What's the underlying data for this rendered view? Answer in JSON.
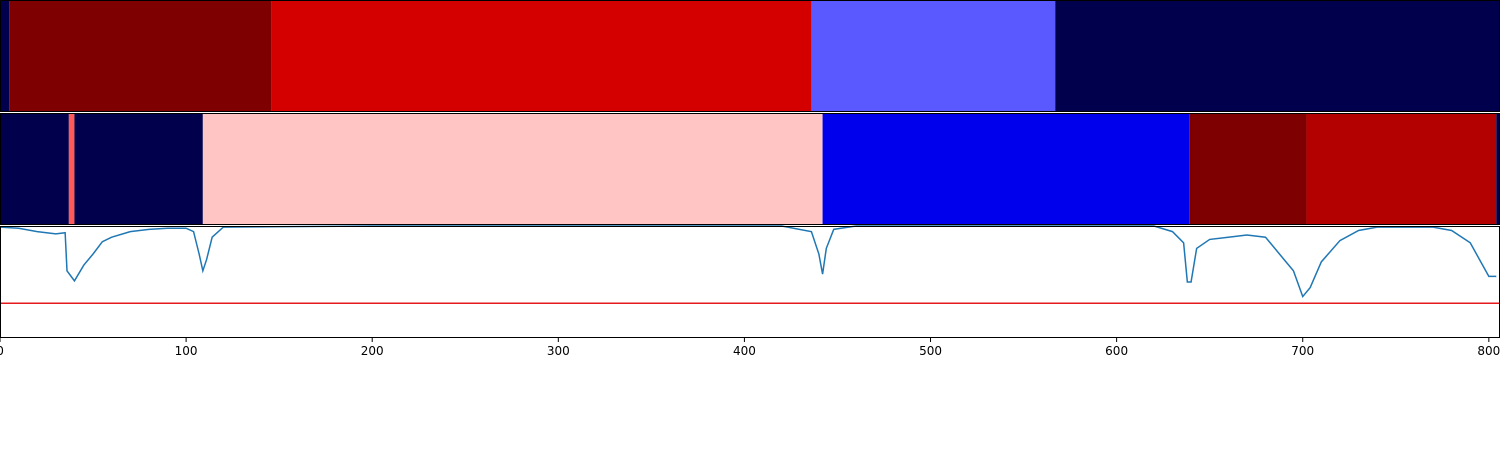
{
  "chart_data": [
    {
      "type": "segments",
      "segments": [
        {
          "start": 0,
          "end": 5,
          "color": "#00004c"
        },
        {
          "start": 5,
          "end": 146,
          "color": "#7f0000"
        },
        {
          "start": 146,
          "end": 436,
          "color": "#d40000"
        },
        {
          "start": 436,
          "end": 567,
          "color": "#5959ff"
        },
        {
          "start": 567,
          "end": 806,
          "color": "#00004c"
        }
      ]
    },
    {
      "type": "segments",
      "segments": [
        {
          "start": 0,
          "end": 37,
          "color": "#00004c"
        },
        {
          "start": 37,
          "end": 40,
          "color": "#ff5959"
        },
        {
          "start": 40,
          "end": 109,
          "color": "#00004c"
        },
        {
          "start": 109,
          "end": 442,
          "color": "#ffc4c4"
        },
        {
          "start": 442,
          "end": 639,
          "color": "#0000ec"
        },
        {
          "start": 639,
          "end": 702,
          "color": "#7f0000"
        },
        {
          "start": 702,
          "end": 804,
          "color": "#b30000"
        },
        {
          "start": 804,
          "end": 806,
          "color": "#00004c"
        }
      ]
    },
    {
      "type": "line",
      "color": "#1f77b4",
      "x": [
        0,
        10,
        20,
        30,
        35,
        36,
        40,
        45,
        50,
        55,
        60,
        70,
        80,
        90,
        100,
        104,
        107,
        109,
        111,
        114,
        120,
        200,
        300,
        420,
        436,
        440,
        442,
        444,
        448,
        460,
        600,
        620,
        630,
        636,
        638,
        640,
        643,
        650,
        660,
        670,
        680,
        690,
        695,
        700,
        704,
        710,
        720,
        730,
        740,
        770,
        780,
        790,
        800,
        804
      ],
      "values": [
        0.99,
        0.98,
        0.95,
        0.93,
        0.94,
        0.6,
        0.51,
        0.65,
        0.75,
        0.86,
        0.9,
        0.95,
        0.97,
        0.98,
        0.98,
        0.95,
        0.75,
        0.6,
        0.7,
        0.9,
        0.99,
        1.0,
        1.0,
        1.0,
        0.95,
        0.75,
        0.57,
        0.8,
        0.97,
        1.0,
        1.0,
        1.0,
        0.95,
        0.85,
        0.5,
        0.5,
        0.8,
        0.88,
        0.9,
        0.92,
        0.9,
        0.7,
        0.6,
        0.37,
        0.45,
        0.68,
        0.87,
        0.96,
        0.99,
        0.99,
        0.96,
        0.85,
        0.55,
        0.55
      ],
      "threshold": 0.31,
      "threshold_color": "#e41a1c",
      "xlim": [
        0,
        806
      ],
      "ylim": [
        0,
        1
      ],
      "xticks": [
        0,
        100,
        200,
        300,
        400,
        500,
        600,
        700,
        800
      ]
    }
  ]
}
